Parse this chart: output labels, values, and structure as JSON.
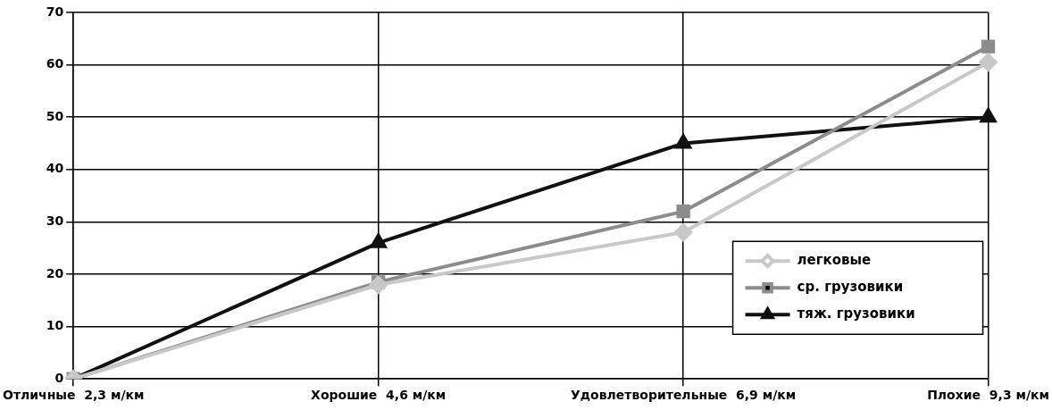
{
  "chart_data": {
    "type": "line",
    "categories": [
      "Отличные  2,3 м/км",
      "Хорошие  4,6 м/км",
      "Удовлетворительные  6,9 м/км",
      "Плохие  9,3 м/км"
    ],
    "series": [
      {
        "name": "легковые",
        "color": "#c8c8c8",
        "marker": "diamond",
        "values": [
          0,
          18,
          28,
          60.5
        ]
      },
      {
        "name": "ср. грузовики",
        "color": "#8c8c8c",
        "marker": "square",
        "values": [
          0,
          18.5,
          32,
          63.5
        ]
      },
      {
        "name": "тяж. грузовики",
        "color": "#111111",
        "marker": "triangle",
        "values": [
          0,
          26,
          45,
          50
        ]
      }
    ],
    "ylim": [
      0,
      70
    ],
    "yticks": [
      0,
      10,
      20,
      30,
      40,
      50,
      60,
      70
    ],
    "grid": true,
    "legend": "bottom right",
    "line_style": "solid"
  }
}
